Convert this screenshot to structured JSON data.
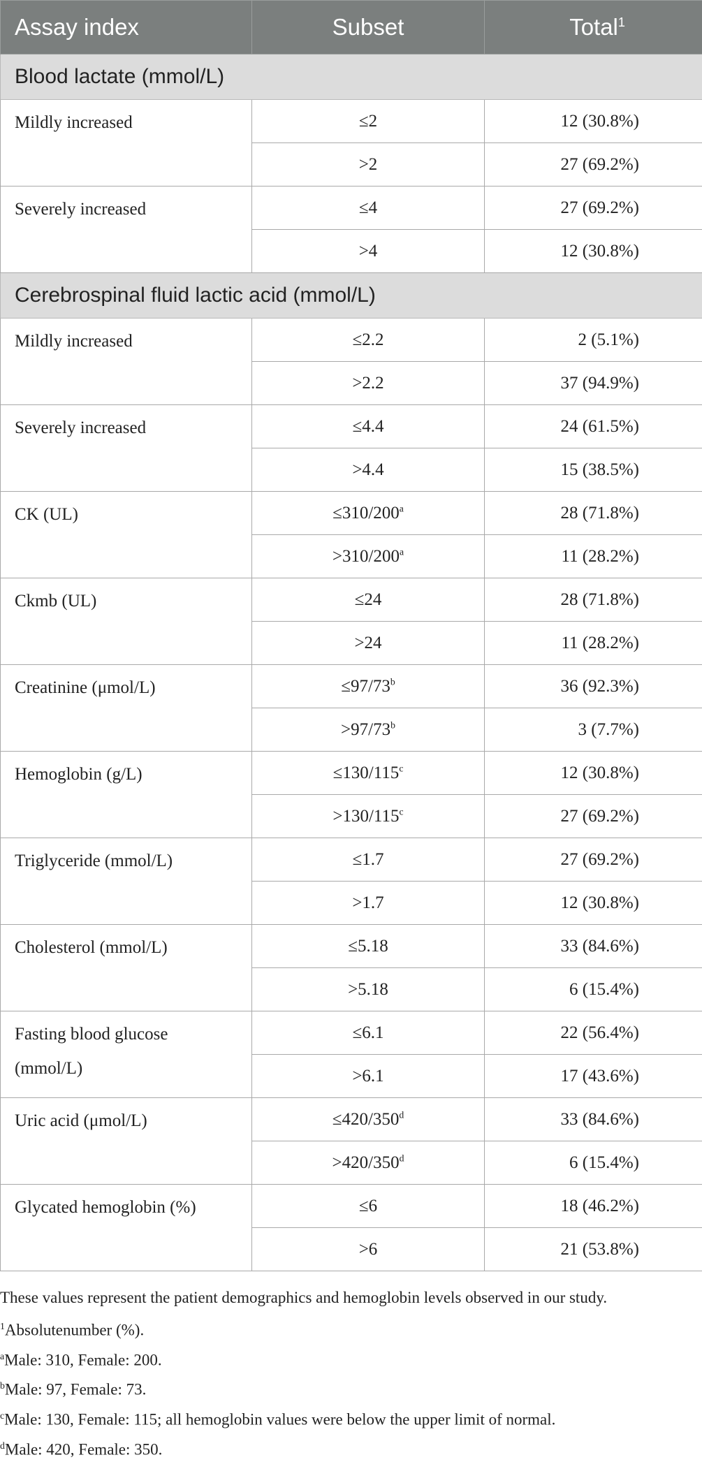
{
  "header": {
    "col1": "Assay index",
    "col2": "Subset",
    "col3": "Total",
    "col3_sup": "1"
  },
  "sections": [
    {
      "title": "Blood lactate (mmol/L)",
      "groups": [
        {
          "name": "Mildly increased",
          "rows": [
            {
              "subset": "≤2",
              "sup": "",
              "total": "12 (30.8%)"
            },
            {
              "subset": ">2",
              "sup": "",
              "total": "27 (69.2%)"
            }
          ]
        },
        {
          "name": "Severely increased",
          "rows": [
            {
              "subset": "≤4",
              "sup": "",
              "total": "27 (69.2%)"
            },
            {
              "subset": ">4",
              "sup": "",
              "total": "12 (30.8%)"
            }
          ]
        }
      ]
    },
    {
      "title": "Cerebrospinal fluid lactic acid (mmol/L)",
      "groups": [
        {
          "name": "Mildly increased",
          "rows": [
            {
              "subset": "≤2.2",
              "sup": "",
              "total": "2 (5.1%)"
            },
            {
              "subset": ">2.2",
              "sup": "",
              "total": "37 (94.9%)"
            }
          ]
        },
        {
          "name": "Severely increased",
          "rows": [
            {
              "subset": "≤4.4",
              "sup": "",
              "total": "24 (61.5%)"
            },
            {
              "subset": ">4.4",
              "sup": "",
              "total": "15 (38.5%)"
            }
          ]
        },
        {
          "name": "CK (UL)",
          "rows": [
            {
              "subset": "≤310/200",
              "sup": "a",
              "total": "28 (71.8%)"
            },
            {
              "subset": ">310/200",
              "sup": "a",
              "total": "11 (28.2%)"
            }
          ]
        },
        {
          "name": "Ckmb (UL)",
          "rows": [
            {
              "subset": "≤24",
              "sup": "",
              "total": "28 (71.8%)"
            },
            {
              "subset": ">24",
              "sup": "",
              "total": "11 (28.2%)"
            }
          ]
        },
        {
          "name": "Creatinine (μmol/L)",
          "rows": [
            {
              "subset": "≤97/73",
              "sup": "b",
              "total": "36 (92.3%)"
            },
            {
              "subset": ">97/73",
              "sup": "b",
              "total": "3 (7.7%)"
            }
          ]
        },
        {
          "name": "Hemoglobin (g/L)",
          "rows": [
            {
              "subset": "≤130/115",
              "sup": "c",
              "total": "12 (30.8%)"
            },
            {
              "subset": ">130/115",
              "sup": "c",
              "total": "27 (69.2%)"
            }
          ]
        },
        {
          "name": "Triglyceride (mmol/L)",
          "rows": [
            {
              "subset": "≤1.7",
              "sup": "",
              "total": "27 (69.2%)"
            },
            {
              "subset": ">1.7",
              "sup": "",
              "total": "12 (30.8%)"
            }
          ]
        },
        {
          "name": "Cholesterol (mmol/L)",
          "rows": [
            {
              "subset": "≤5.18",
              "sup": "",
              "total": "33 (84.6%)"
            },
            {
              "subset": ">5.18",
              "sup": "",
              "total": "6 (15.4%)"
            }
          ]
        },
        {
          "name": "Fasting blood glucose (mmol/L)",
          "rows": [
            {
              "subset": "≤6.1",
              "sup": "",
              "total": "22 (56.4%)"
            },
            {
              "subset": ">6.1",
              "sup": "",
              "total": "17 (43.6%)"
            }
          ]
        },
        {
          "name": "Uric acid (μmol/L)",
          "rows": [
            {
              "subset": "≤420/350",
              "sup": "d",
              "total": "33 (84.6%)"
            },
            {
              "subset": ">420/350",
              "sup": "d",
              "total": "6 (15.4%)"
            }
          ]
        },
        {
          "name": "Glycated hemoglobin (%)",
          "rows": [
            {
              "subset": "≤6",
              "sup": "",
              "total": "18 (46.2%)"
            },
            {
              "subset": ">6",
              "sup": "",
              "total": "21 (53.8%)"
            }
          ]
        }
      ]
    }
  ],
  "notes": {
    "summary": "These values represent the patient demographics and hemoglobin levels observed in our study.",
    "items": [
      {
        "mark": "1",
        "text": "Absolutenumber (%)."
      },
      {
        "mark": "a",
        "text": "Male: 310, Female: 200."
      },
      {
        "mark": "b",
        "text": "Male: 97, Female: 73."
      },
      {
        "mark": "c",
        "text": "Male: 130, Female: 115; all hemoglobin values were below the upper limit of normal."
      },
      {
        "mark": "d",
        "text": "Male: 420, Female: 350."
      }
    ]
  }
}
